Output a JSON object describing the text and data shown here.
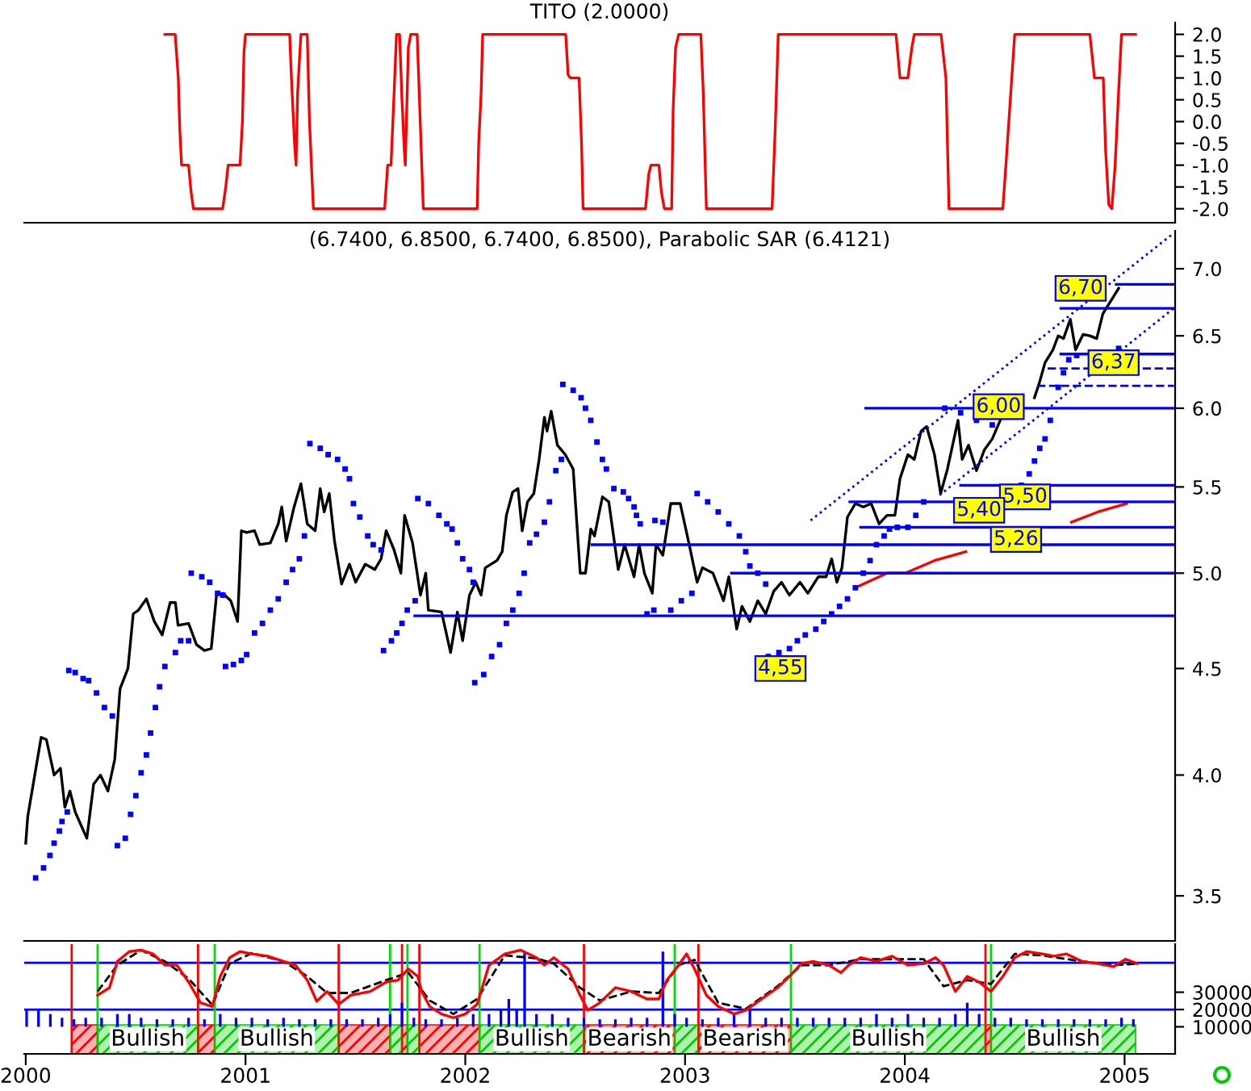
{
  "chart_data": [
    {
      "type": "line",
      "title": "TITO (2.0000)",
      "xlim": [
        1999.993,
        2005.23
      ],
      "ylim": [
        -2.32,
        2.27
      ],
      "tick_labels": "y",
      "grid": false,
      "yticks": [
        {
          "value": 2,
          "label": "2.0"
        },
        {
          "value": 1.5,
          "label": "1.5"
        },
        {
          "value": 1,
          "label": "1.0"
        },
        {
          "value": 0.5,
          "label": "0.5"
        },
        {
          "value": 0,
          "label": "0.0"
        },
        {
          "value": -0.5,
          "label": "-0.5"
        },
        {
          "value": -1,
          "label": "-1.0"
        },
        {
          "value": -1.5,
          "label": "-1.5"
        },
        {
          "value": -2,
          "label": "-2.0"
        }
      ],
      "series": [
        {
          "color": "#ff0000",
          "x": [
            2000.633,
            2000.68,
            2000.694,
            2000.701,
            2000.709,
            2000.741,
            2000.752,
            2000.763,
            2000.896,
            2000.91,
            2000.921,
            2000.975,
            2000.986,
            2000.993,
            2001.0,
            2001.201,
            2001.209,
            2001.223,
            2001.23,
            2001.237,
            2001.252,
            2001.281,
            2001.291,
            2001.309,
            2001.633,
            2001.647,
            2001.662,
            2001.676,
            2001.687,
            2001.701,
            2001.712,
            2001.723,
            2001.727,
            2001.741,
            2001.752,
            2001.781,
            2001.795,
            2001.809,
            2002.054,
            2002.061,
            2002.072,
            2002.079,
            2002.457,
            2002.468,
            2002.478,
            2002.518,
            2002.529,
            2002.536,
            2002.82,
            2002.835,
            2002.845,
            2002.881,
            2002.892,
            2002.906,
            2002.939,
            2002.946,
            2002.957,
            2002.971,
            2003.072,
            2003.083,
            2003.097,
            2003.396,
            2003.41,
            2003.424,
            2003.96,
            2003.978,
            2004.014,
            2004.032,
            2004.043,
            2004.165,
            2004.187,
            2004.201,
            2004.446,
            2004.46,
            2004.482,
            2004.5,
            2004.842,
            2004.863,
            2004.903,
            2004.914,
            2004.928,
            2004.942,
            2004.957,
            2004.971,
            2004.986,
            2005.05
          ],
          "values": [
            2,
            2,
            1,
            -0.2,
            -1,
            -1,
            -1.6,
            -2,
            -2,
            -1.5,
            -1,
            -1,
            0,
            1.6,
            2,
            2,
            1,
            -0.5,
            -1,
            0.65,
            2,
            2,
            0,
            -2,
            -2,
            -1,
            -1,
            0.65,
            2,
            2,
            0.5,
            -0.7,
            -1,
            1.7,
            2,
            2,
            0,
            -2,
            -2,
            -0.5,
            0.65,
            2,
            2,
            1.07,
            1,
            1,
            -0.5,
            -2,
            -2,
            -1.2,
            -1,
            -1,
            -1.6,
            -2,
            -2,
            0.3,
            1.7,
            2,
            2,
            0.65,
            -2,
            -2,
            -0.2,
            2,
            2,
            1,
            1,
            1.7,
            2,
            2,
            1,
            -2,
            -2,
            -1,
            0.65,
            2,
            2,
            1,
            1,
            -0.7,
            -1.9,
            -2,
            -1,
            0.5,
            2,
            2
          ]
        }
      ]
    },
    {
      "type": "line",
      "title": "(6.7400, 6.8500, 6.7400, 6.8500), Parabolic SAR (6.4121)",
      "log": true,
      "xlim": [
        1999.993,
        2005.23
      ],
      "ylim": [
        3.33,
        7.3
      ],
      "tick_labels": "y",
      "grid": false,
      "yticks": [
        {
          "value": 3.5,
          "label": "3.5"
        },
        {
          "value": 4,
          "label": "4.0"
        },
        {
          "value": 4.5,
          "label": "4.5"
        },
        {
          "value": 5,
          "label": "5.0"
        },
        {
          "value": 5.5,
          "label": "5.5"
        },
        {
          "value": 6,
          "label": "6.0"
        },
        {
          "value": 6.5,
          "label": "6.5"
        },
        {
          "value": 7,
          "label": "7.0"
        }
      ],
      "series": [
        {
          "type": "scatter",
          "color": "#0000ff",
          "marker": "square",
          "x": [
            2000.045,
            2000.081,
            2000.11,
            2000.129,
            2000.153,
            2000.165,
            2000.189,
            2000.196,
            2000.225,
            2000.261,
            2000.286,
            2000.322,
            2000.358,
            2000.394,
            2000.417,
            2000.453,
            2000.477,
            2000.501,
            2000.525,
            2000.549,
            2000.568,
            2000.59,
            2000.609,
            2000.633,
            2000.681,
            2000.705,
            2000.741,
            2000.753,
            2000.801,
            2000.837,
            2000.873,
            2000.897,
            2000.909,
            2000.945,
            2000.981,
            2001.005,
            2001.041,
            2001.077,
            2001.113,
            2001.149,
            2001.185,
            2001.214,
            2001.245,
            2001.268,
            2001.293,
            2001.34,
            2001.376,
            2001.419,
            2001.453,
            2001.473,
            2001.491,
            2001.52,
            2001.556,
            2001.581,
            2001.617,
            2001.628,
            2001.664,
            2001.688,
            2001.712,
            2001.736,
            2001.772,
            2001.784,
            2001.832,
            2001.88,
            2001.916,
            2001.94,
            2001.964,
            2001.988,
            2002.019,
            2002.036,
            2002.043,
            2002.084,
            2002.12,
            2002.156,
            2002.187,
            2002.216,
            2002.245,
            2002.268,
            2002.293,
            2002.324,
            2002.36,
            2002.383,
            2002.412,
            2002.437,
            2002.444,
            2002.491,
            2002.527,
            2002.547,
            2002.571,
            2002.599,
            2002.624,
            2002.642,
            2002.676,
            2002.719,
            2002.743,
            2002.768,
            2002.779,
            2002.796,
            2002.863,
            2002.899,
            2002.827,
            2002.858,
            2002.935,
            2002.983,
            2003.031,
            2003.055,
            2003.103,
            2003.151,
            2003.199,
            2003.247,
            2003.276,
            2003.295,
            2003.331,
            2003.367,
            2003.379,
            2003.427,
            2003.475,
            2003.511,
            2003.547,
            2003.595,
            2003.631,
            2003.667,
            2003.703,
            2003.739,
            2003.775,
            2003.811,
            2003.842,
            2003.871,
            2003.906,
            2003.93,
            2003.966,
            2004.014,
            2004.05,
            2004.086,
            2004.182,
            2004.254,
            2004.326,
            2004.398,
            2004.53,
            2004.566,
            2004.59,
            2004.614,
            2004.638,
            2004.662,
            2004.698,
            2004.722,
            2004.746,
            2004.782,
            2004.973
          ],
          "values": [
            3.57,
            3.61,
            3.66,
            3.71,
            3.76,
            3.8,
            3.84,
            4.49,
            4.48,
            4.45,
            4.44,
            4.38,
            4.31,
            4.27,
            3.7,
            3.73,
            3.83,
            3.91,
            4.01,
            4.09,
            4.19,
            4.31,
            4.41,
            4.51,
            4.58,
            4.64,
            4.64,
            5.0,
            4.98,
            4.95,
            4.89,
            4.88,
            4.51,
            4.52,
            4.54,
            4.57,
            4.68,
            4.73,
            4.8,
            4.86,
            4.95,
            5.02,
            5.08,
            5.21,
            5.77,
            5.74,
            5.7,
            5.67,
            5.61,
            5.55,
            5.4,
            5.32,
            5.21,
            5.16,
            5.13,
            4.59,
            4.64,
            4.68,
            4.73,
            4.8,
            4.85,
            5.43,
            5.4,
            5.33,
            5.28,
            5.25,
            5.17,
            5.08,
            5.02,
            4.95,
            4.43,
            4.47,
            4.56,
            4.62,
            4.73,
            4.8,
            4.89,
            5.0,
            5.17,
            5.22,
            5.29,
            5.41,
            5.6,
            5.67,
            6.16,
            6.12,
            6.07,
            6.0,
            5.92,
            5.78,
            5.67,
            5.61,
            5.49,
            5.47,
            5.43,
            5.38,
            5.33,
            5.28,
            5.3,
            5.29,
            4.78,
            4.8,
            4.8,
            4.85,
            4.89,
            5.46,
            5.41,
            5.35,
            5.28,
            5.21,
            5.12,
            5.04,
            5.0,
            4.94,
            4.56,
            4.58,
            4.6,
            4.64,
            4.67,
            4.7,
            4.74,
            4.78,
            4.82,
            4.86,
            4.92,
            5.0,
            5.07,
            5.16,
            5.21,
            5.25,
            5.26,
            5.26,
            5.33,
            5.41,
            6.0,
            5.97,
            5.92,
            5.89,
            5.51,
            5.58,
            5.66,
            5.74,
            5.8,
            5.92,
            6.14,
            6.24,
            6.33,
            6.36,
            6.41
          ]
        },
        {
          "type": "line",
          "color": "#000000",
          "x": [
            2000.0,
            2000.009,
            2000.07,
            2000.094,
            2000.129,
            2000.158,
            2000.178,
            2000.201,
            2000.225,
            2000.278,
            2000.309,
            2000.34,
            2000.374,
            2000.405,
            2000.429,
            2000.465,
            2000.489,
            2000.513,
            2000.549,
            2000.585,
            2000.621,
            2000.657,
            2000.681,
            2000.693,
            2000.741,
            2000.777,
            2000.813,
            2000.844,
            2000.868,
            2000.897,
            2000.933,
            2000.964,
            2000.981,
            2001.005,
            2001.041,
            2001.065,
            2001.113,
            2001.149,
            2001.165,
            2001.185,
            2001.221,
            2001.252,
            2001.281,
            2001.317,
            2001.34,
            2001.358,
            2001.381,
            2001.405,
            2001.437,
            2001.473,
            2001.501,
            2001.545,
            2001.588,
            2001.617,
            2001.64,
            2001.676,
            2001.707,
            2001.724,
            2001.76,
            2001.796,
            2001.82,
            2001.832,
            2001.892,
            2001.933,
            2001.964,
            2001.988,
            2002.019,
            2002.048,
            2002.072,
            2002.091,
            2002.144,
            2002.168,
            2002.187,
            2002.216,
            2002.24,
            2002.259,
            2002.283,
            2002.312,
            2002.336,
            2002.36,
            2002.372,
            2002.391,
            2002.419,
            2002.455,
            2002.491,
            2002.523,
            2002.547,
            2002.571,
            2002.588,
            2002.624,
            2002.653,
            2002.696,
            2002.725,
            2002.768,
            2002.791,
            2002.815,
            2002.851,
            2002.868,
            2002.899,
            2002.935,
            2002.978,
            2003.019,
            2003.055,
            2003.079,
            2003.127,
            2003.175,
            2003.199,
            2003.235,
            2003.259,
            2003.295,
            2003.331,
            2003.367,
            2003.403,
            2003.439,
            2003.475,
            2003.523,
            2003.559,
            2003.606,
            2003.642,
            2003.667,
            2003.691,
            2003.714,
            2003.739,
            2003.775,
            2003.811,
            2003.847,
            2003.883,
            2003.919,
            2003.955,
            2003.978,
            2004.014,
            2004.043,
            2004.074,
            2004.099,
            2004.135,
            2004.163,
            2004.194,
            2004.242,
            2004.261,
            2004.29,
            2004.326,
            2004.362,
            2004.398,
            2004.434,
            2004.465,
            2004.494,
            2004.53,
            2004.59,
            2004.614,
            2004.638,
            2004.674,
            2004.698,
            2004.722,
            2004.753,
            2004.777,
            2004.811,
            2004.842,
            2004.873,
            2004.901,
            2004.973
          ],
          "values": [
            3.71,
            3.82,
            4.17,
            4.16,
            4.0,
            4.03,
            3.86,
            3.93,
            3.84,
            3.73,
            3.96,
            4.0,
            3.93,
            4.07,
            4.4,
            4.5,
            4.78,
            4.8,
            4.86,
            4.74,
            4.67,
            4.84,
            4.84,
            4.72,
            4.73,
            4.62,
            4.59,
            4.6,
            4.88,
            4.89,
            4.85,
            4.74,
            5.24,
            5.23,
            5.24,
            5.16,
            5.17,
            5.28,
            5.38,
            5.18,
            5.38,
            5.52,
            5.28,
            5.24,
            5.49,
            5.35,
            5.46,
            5.18,
            4.94,
            5.05,
            4.95,
            5.05,
            5.02,
            5.08,
            5.24,
            5.13,
            5.0,
            5.33,
            5.17,
            4.88,
            5.0,
            4.8,
            4.79,
            4.58,
            4.79,
            4.64,
            4.88,
            4.95,
            4.88,
            5.03,
            5.07,
            5.12,
            5.33,
            5.47,
            5.49,
            5.24,
            5.41,
            5.46,
            5.67,
            5.94,
            5.85,
            5.98,
            5.76,
            5.7,
            5.61,
            5.0,
            5.0,
            5.25,
            5.21,
            5.44,
            5.41,
            5.02,
            5.16,
            4.98,
            5.16,
            5.0,
            4.89,
            5.16,
            5.1,
            5.4,
            5.4,
            5.16,
            4.95,
            5.03,
            5.0,
            4.85,
            4.98,
            4.7,
            4.82,
            4.74,
            4.85,
            4.78,
            4.9,
            4.95,
            4.88,
            4.95,
            4.89,
            4.98,
            4.98,
            5.08,
            4.95,
            5.03,
            5.32,
            5.4,
            5.38,
            5.4,
            5.28,
            5.33,
            5.33,
            5.55,
            5.7,
            5.67,
            5.85,
            5.88,
            5.7,
            5.46,
            5.61,
            5.92,
            5.67,
            5.76,
            5.6,
            5.73,
            5.8,
            5.92,
            null,
            null,
            null,
            6.07,
            6.18,
            6.31,
            6.4,
            6.5,
            6.48,
            6.62,
            6.4,
            6.51,
            6.5,
            6.48,
            6.66,
            6.85
          ]
        },
        {
          "type": "line",
          "color": "#ff0000",
          "x": [
            2003.775,
            2003.919,
            2004.002,
            2004.135,
            2004.278,
            2004.398,
            2004.614,
            2004.758,
            2004.878,
            2005.009
          ],
          "values": [
            4.92,
            5.0,
            5.0,
            5.07,
            5.12,
            null,
            null,
            5.29,
            5.35,
            5.4
          ]
        },
        {
          "type": "line",
          "color": "#0000ff",
          "x": [
            2001.77,
            2005.225
          ],
          "values": [
            4.77,
            4.77
          ]
        },
        {
          "type": "line",
          "color": "#0000ff",
          "x": [
            2002.576,
            2005.225
          ],
          "values": [
            5.16,
            5.16
          ]
        },
        {
          "type": "line",
          "color": "#0000ff",
          "x": [
            2003.211,
            2005.225
          ],
          "values": [
            5.0,
            5.0
          ]
        },
        {
          "type": "line",
          "color": "#0000ff",
          "x": [
            2003.75,
            2005.225
          ],
          "values": [
            5.41,
            5.41
          ]
        },
        {
          "type": "line",
          "color": "#0000ff",
          "x": [
            2003.799,
            2005.225
          ],
          "values": [
            5.26,
            5.26
          ]
        },
        {
          "type": "line",
          "color": "#0000ff",
          "x": [
            2004.254,
            2005.225
          ],
          "values": [
            5.51,
            5.51
          ]
        },
        {
          "type": "line",
          "color": "#0000ff",
          "x": [
            2003.822,
            2005.225
          ],
          "values": [
            6.0,
            6.0
          ]
        },
        {
          "type": "line",
          "color": "#0000ff",
          "line_style": "dashed",
          "x": [
            2004.602,
            2005.225
          ],
          "values": [
            6.15,
            6.15
          ]
        },
        {
          "type": "line",
          "color": "#0000ff",
          "line_style": "dashed",
          "x": [
            2004.65,
            2005.225
          ],
          "values": [
            6.27,
            6.27
          ]
        },
        {
          "type": "line",
          "color": "#0000ff",
          "x": [
            2004.71,
            2005.225
          ],
          "values": [
            6.37,
            6.37
          ]
        },
        {
          "type": "line",
          "color": "#0000ff",
          "x": [
            2004.71,
            2005.225
          ],
          "values": [
            6.7,
            6.7
          ]
        },
        {
          "type": "line",
          "color": "#0000ff",
          "x": [
            2004.962,
            2005.225
          ],
          "values": [
            6.88,
            6.88
          ]
        },
        {
          "type": "line",
          "color": "#0000ff",
          "line_style": "dotted",
          "x": [
            2003.571,
            2005.223
          ],
          "values": [
            5.3,
            7.28
          ]
        },
        {
          "type": "line",
          "color": "#0000ff",
          "line_style": "dotted",
          "x": [
            2004.158,
            2005.223
          ],
          "values": [
            5.45,
            6.7
          ]
        }
      ],
      "annotations": [
        {
          "text": "6,70",
          "x": 2004.8,
          "y": 6.85
        },
        {
          "text": "6,37",
          "x": 2004.95,
          "y": 6.31
        },
        {
          "text": "6,00",
          "x": 2004.427,
          "y": 6.01
        },
        {
          "text": "5,50",
          "x": 2004.547,
          "y": 5.44
        },
        {
          "text": "5,40",
          "x": 2004.338,
          "y": 5.36
        },
        {
          "text": "5,26",
          "x": 2004.506,
          "y": 5.19
        },
        {
          "text": "4,55",
          "x": 2003.434,
          "y": 4.5
        }
      ]
    },
    {
      "type": "bar",
      "xlim": [
        1999.993,
        2005.23
      ],
      "ylim": [
        -5650,
        57800
      ],
      "grid": false,
      "xticks": [
        2000,
        2001,
        2002,
        2003,
        2004,
        2005
      ],
      "yticks": [
        30000,
        20000,
        10000
      ],
      "series": [
        {
          "type": "bar",
          "color": "#0000ff",
          "x": [
            2000.004,
            2000.058,
            2000.112,
            2000.165,
            2000.219,
            2000.273,
            2000.345,
            2000.417,
            2000.471,
            2000.525,
            2000.597,
            2000.669,
            2000.741,
            2000.813,
            2000.885,
            2000.957,
            2001.029,
            2001.101,
            2001.173,
            2001.245,
            2001.317,
            2001.388,
            2001.46,
            2001.532,
            2001.604,
            2001.658,
            2001.712,
            2001.766,
            2001.82,
            2001.892,
            2001.964,
            2002.036,
            2002.108,
            2002.162,
            2002.198,
            2002.234,
            2002.27,
            2002.324,
            2002.396,
            2002.468,
            2002.54,
            2002.612,
            2002.683,
            2002.755,
            2002.827,
            2002.899,
            2002.953,
            2003.007,
            2003.079,
            2003.151,
            2003.223,
            2003.295,
            2003.367,
            2003.439,
            2003.511,
            2003.583,
            2003.655,
            2003.727,
            2003.799,
            2003.871,
            2003.942,
            2004.014,
            2004.086,
            2004.158,
            2004.23,
            2004.284,
            2004.338,
            2004.41,
            2004.482,
            2004.554,
            2004.626,
            2004.698,
            2004.77,
            2004.842,
            2004.914,
            2004.986,
            2005.04
          ],
          "values": [
            9570,
            9570,
            7390,
            5220,
            4350,
            5220,
            5220,
            7390,
            7390,
            5220,
            4350,
            4350,
            5220,
            4350,
            7390,
            5220,
            5220,
            4350,
            5220,
            4350,
            4350,
            4350,
            4350,
            4350,
            5220,
            7390,
            13910,
            5220,
            4350,
            4350,
            5220,
            7390,
            7390,
            9570,
            16090,
            9570,
            43480,
            7390,
            7390,
            5220,
            5220,
            4350,
            4350,
            5220,
            5220,
            43480,
            7390,
            5220,
            4350,
            5220,
            7390,
            9570,
            5220,
            5220,
            5220,
            5220,
            5220,
            5220,
            5220,
            7390,
            5220,
            7390,
            5220,
            5220,
            7390,
            13910,
            7390,
            5220,
            5220,
            4350,
            4350,
            4350,
            4350,
            4350,
            4350,
            5220,
            4350
          ],
          "base": [
            10000,
            10000,
            10000,
            10000,
            10000,
            10000,
            10000,
            10000,
            10000,
            10000,
            10000,
            10000,
            10000,
            10000,
            10000,
            10000,
            10000,
            10000,
            10000,
            10000,
            10000,
            10000,
            10000,
            10000,
            10000,
            10000,
            10000,
            10000,
            10000,
            10000,
            10000,
            10000,
            10000,
            10000,
            10000,
            10000,
            10000,
            10000,
            10000,
            10000,
            10000,
            10000,
            10000,
            10000,
            10000,
            10000,
            10000,
            10000,
            10000,
            10000,
            10000,
            10000,
            10000,
            10000,
            10000,
            10000,
            10000,
            10000,
            10000,
            10000,
            10000,
            10000,
            10000,
            10000,
            10000,
            10000,
            10000,
            10000,
            10000,
            10000,
            10000,
            10000,
            10000,
            10000,
            10000,
            10000,
            10000
          ]
        },
        {
          "type": "line",
          "color": "#000000",
          "line_style": "dashed",
          "x": [
            2000.327,
            2000.417,
            2000.525,
            2000.633,
            2000.741,
            2000.849,
            2000.928,
            2001.029,
            2001.173,
            2001.281,
            2001.371,
            2001.478,
            2001.64,
            2001.741,
            2001.838,
            2001.946,
            2002.054,
            2002.18,
            2002.324,
            2002.403,
            2002.522,
            2002.612,
            2002.755,
            2002.881,
            2002.971,
            2003.043,
            2003.151,
            2003.277,
            2003.421,
            2003.529,
            2003.655,
            2003.799,
            2003.942,
            2004.086,
            2004.176,
            2004.284,
            2004.392,
            2004.5,
            2004.626,
            2004.806,
            2004.95,
            2005.058
          ],
          "values": [
            30430,
            45650,
            54350,
            47830,
            37830,
            22610,
            46520,
            52610,
            47830,
            39130,
            29570,
            29570,
            36960,
            41300,
            25220,
            17390,
            26090,
            51300,
            49560,
            46520,
            32610,
            25220,
            30430,
            29570,
            45650,
            48700,
            23910,
            20430,
            33480,
            45650,
            45650,
            49130,
            49130,
            49130,
            33480,
            36960,
            34780,
            52170,
            51300,
            47830,
            45650,
            46520
          ]
        },
        {
          "type": "line",
          "color": "#ff0000",
          "x": [
            2000.327,
            2000.381,
            2000.417,
            2000.471,
            2000.525,
            2000.579,
            2000.633,
            2000.687,
            2000.741,
            2000.795,
            2000.849,
            2000.885,
            2000.928,
            2000.975,
            2001.029,
            2001.101,
            2001.173,
            2001.227,
            2001.281,
            2001.324,
            2001.371,
            2001.424,
            2001.478,
            2001.568,
            2001.64,
            2001.694,
            2001.741,
            2001.784,
            2001.802,
            2001.838,
            2001.892,
            2001.946,
            2002.0,
            2002.054,
            2002.108,
            2002.18,
            2002.252,
            2002.324,
            2002.36,
            2002.403,
            2002.468,
            2002.522,
            2002.558,
            2002.612,
            2002.683,
            2002.755,
            2002.827,
            2002.881,
            2002.917,
            2002.971,
            2003.007,
            2003.043,
            2003.097,
            2003.151,
            2003.223,
            2003.277,
            2003.349,
            2003.421,
            2003.475,
            2003.529,
            2003.583,
            2003.655,
            2003.709,
            2003.745,
            2003.799,
            2003.871,
            2003.942,
            2004.014,
            2004.086,
            2004.14,
            2004.176,
            2004.23,
            2004.284,
            2004.338,
            2004.392,
            2004.446,
            2004.5,
            2004.554,
            2004.626,
            2004.68,
            2004.734,
            2004.806,
            2004.878,
            2004.95,
            2005.004,
            2005.058
          ],
          "values": [
            28260,
            32610,
            47830,
            53480,
            54350,
            52170,
            45650,
            45650,
            35870,
            23910,
            21740,
            39130,
            50000,
            53480,
            52170,
            50870,
            47830,
            45650,
            36960,
            24780,
            30430,
            23040,
            28260,
            30430,
            35870,
            36960,
            43480,
            39130,
            30430,
            21740,
            17390,
            15220,
            17390,
            23040,
            45650,
            52170,
            54350,
            50000,
            45650,
            50000,
            43480,
            28260,
            19570,
            23910,
            32610,
            30430,
            26090,
            26090,
            36960,
            45650,
            52170,
            43480,
            28260,
            21740,
            17390,
            19570,
            26090,
            32610,
            39130,
            46520,
            47830,
            45650,
            41300,
            45650,
            50000,
            47830,
            50870,
            45650,
            46520,
            50000,
            45650,
            30430,
            39130,
            35870,
            30430,
            39130,
            50000,
            53480,
            52170,
            50870,
            52170,
            47830,
            46520,
            44780,
            49130,
            46520
          ]
        }
      ],
      "ref_lines": [
        {
          "axis": "y",
          "value": 47000,
          "color": "#0000ff"
        },
        {
          "axis": "y",
          "value": 20000,
          "color": "#0000ff"
        },
        {
          "axis": "x",
          "value": 2000.209,
          "color": "#ff0000"
        },
        {
          "axis": "x",
          "value": 2000.784,
          "color": "#ff0000"
        },
        {
          "axis": "x",
          "value": 2001.424,
          "color": "#ff0000"
        },
        {
          "axis": "x",
          "value": 2001.712,
          "color": "#ff0000"
        },
        {
          "axis": "x",
          "value": 2001.791,
          "color": "#ff0000"
        },
        {
          "axis": "x",
          "value": 2002.54,
          "color": "#ff0000"
        },
        {
          "axis": "x",
          "value": 2003.061,
          "color": "#ff0000"
        },
        {
          "axis": "x",
          "value": 2004.367,
          "color": "#ff0000"
        },
        {
          "axis": "x",
          "value": 2000.327,
          "color": "#00dd00"
        },
        {
          "axis": "x",
          "value": 2000.86,
          "color": "#00dd00"
        },
        {
          "axis": "x",
          "value": 2001.658,
          "color": "#00dd00"
        },
        {
          "axis": "x",
          "value": 2001.737,
          "color": "#00dd00"
        },
        {
          "axis": "x",
          "value": 2002.065,
          "color": "#00dd00"
        },
        {
          "axis": "x",
          "value": 2002.953,
          "color": "#00dd00"
        },
        {
          "axis": "x",
          "value": 2003.482,
          "color": "#00dd00"
        },
        {
          "axis": "x",
          "value": 2004.392,
          "color": "#00dd00"
        }
      ],
      "bands": [
        {
          "axis": "x",
          "from": 2000.209,
          "to": 2000.327,
          "label": null,
          "color": "#ff0000"
        },
        {
          "axis": "x",
          "from": 2000.327,
          "to": 2000.784,
          "label": "Bullish",
          "color": "#00cc00"
        },
        {
          "axis": "x",
          "from": 2000.784,
          "to": 2000.86,
          "label": null,
          "color": "#ff0000"
        },
        {
          "axis": "x",
          "from": 2000.86,
          "to": 2001.424,
          "label": "Bullish",
          "color": "#00cc00"
        },
        {
          "axis": "x",
          "from": 2001.424,
          "to": 2001.658,
          "label": null,
          "color": "#ff0000"
        },
        {
          "axis": "x",
          "from": 2001.658,
          "to": 2001.712,
          "label": null,
          "color": "#00cc00"
        },
        {
          "axis": "x",
          "from": 2001.712,
          "to": 2001.737,
          "label": null,
          "color": "#ff0000"
        },
        {
          "axis": "x",
          "from": 2001.737,
          "to": 2001.791,
          "label": null,
          "color": "#00cc00"
        },
        {
          "axis": "x",
          "from": 2001.791,
          "to": 2002.065,
          "label": null,
          "color": "#ff0000"
        },
        {
          "axis": "x",
          "from": 2002.065,
          "to": 2002.54,
          "label": "Bullish",
          "color": "#00cc00"
        },
        {
          "axis": "x",
          "from": 2002.54,
          "to": 2002.953,
          "label": "Bearish",
          "color": "#ff0000"
        },
        {
          "axis": "x",
          "from": 2002.953,
          "to": 2003.061,
          "label": null,
          "color": "#00cc00"
        },
        {
          "axis": "x",
          "from": 2003.061,
          "to": 2003.482,
          "label": "Bearish",
          "color": "#ff0000"
        },
        {
          "axis": "x",
          "from": 2003.482,
          "to": 2004.367,
          "label": "Bullish",
          "color": "#00cc00"
        },
        {
          "axis": "x",
          "from": 2004.367,
          "to": 2004.392,
          "label": null,
          "color": "#ff0000"
        },
        {
          "axis": "x",
          "from": 2004.392,
          "to": 2005.05,
          "label": "Bullish",
          "color": "#00cc00"
        }
      ]
    }
  ]
}
